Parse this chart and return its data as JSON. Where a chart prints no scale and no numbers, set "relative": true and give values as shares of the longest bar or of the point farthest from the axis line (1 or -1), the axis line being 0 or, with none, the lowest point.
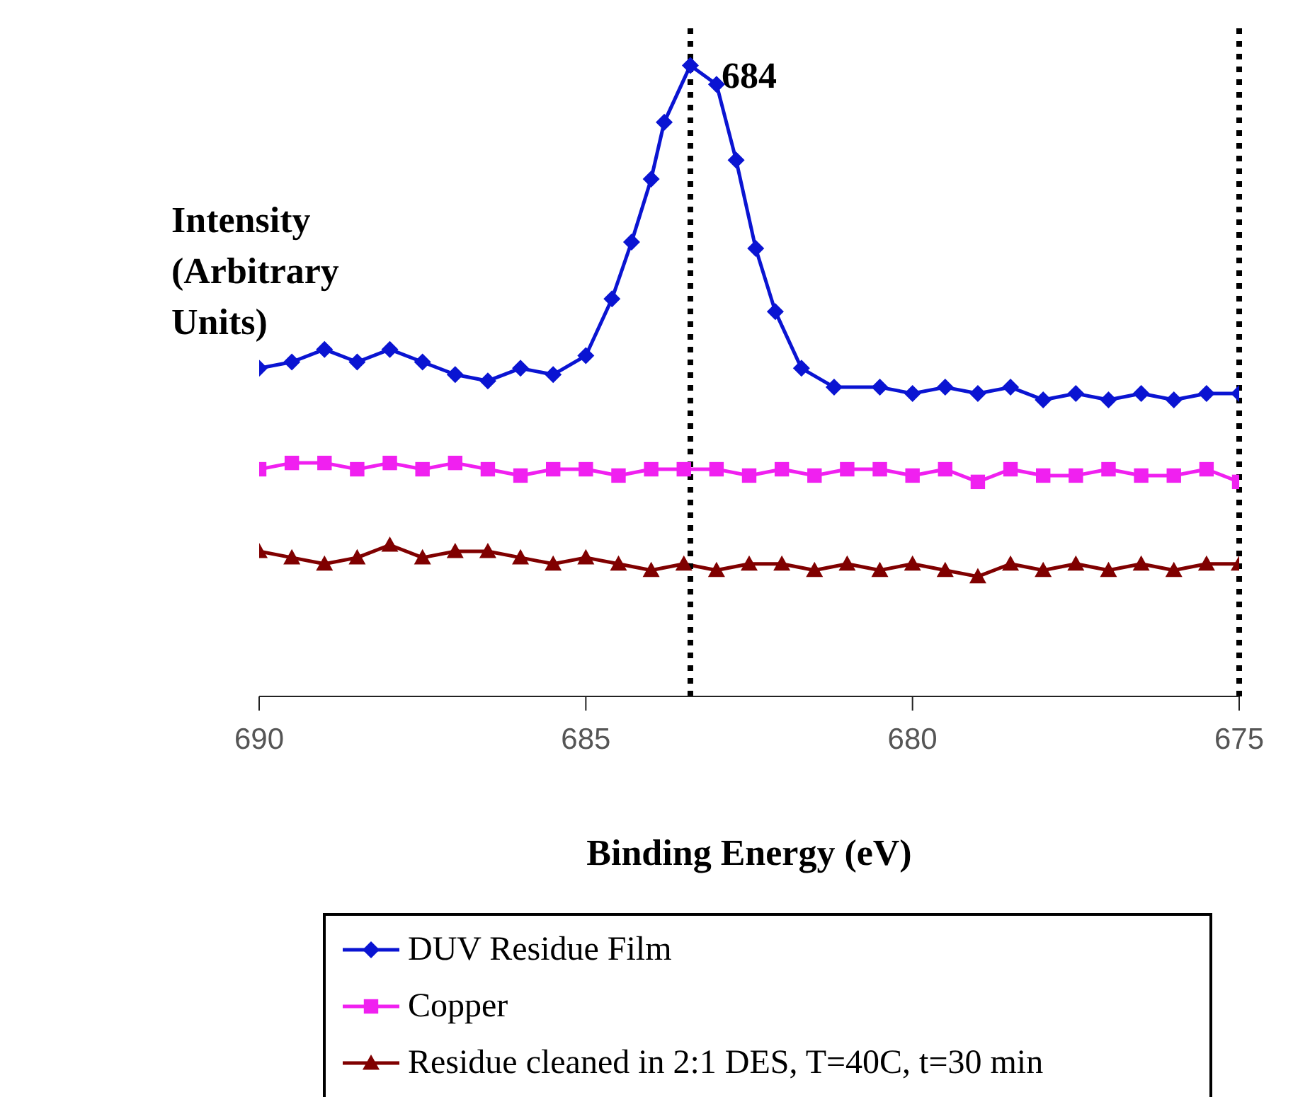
{
  "chart_data": {
    "type": "line",
    "relative": true,
    "xlabel": "Binding Energy (eV)",
    "ylabel": "Intensity (Arbitrary Units)",
    "xlim": [
      690,
      675
    ],
    "xticks": [
      690,
      685,
      680,
      675
    ],
    "grid": false,
    "legend": "bottom",
    "line_style": "solid",
    "series": [
      {
        "name": "DUV Residue Film",
        "color": "#0a14d2",
        "marker": "diamond",
        "x": [
          690,
          689.5,
          689,
          688.5,
          688,
          687.5,
          687,
          686.5,
          686,
          685.5,
          685,
          684.6,
          684.3,
          684,
          683.8,
          683.4,
          683,
          682.7,
          682.4,
          682.1,
          681.7,
          681.2,
          680.5,
          680,
          679.5,
          679,
          678.5,
          678,
          677.5,
          677,
          676.5,
          676,
          675.5,
          675
        ],
        "values": [
          0.52,
          0.53,
          0.55,
          0.53,
          0.55,
          0.53,
          0.51,
          0.5,
          0.52,
          0.51,
          0.54,
          0.63,
          0.72,
          0.82,
          0.91,
          1.0,
          0.97,
          0.85,
          0.71,
          0.61,
          0.52,
          0.49,
          0.49,
          0.48,
          0.49,
          0.48,
          0.49,
          0.47,
          0.48,
          0.47,
          0.48,
          0.47,
          0.48,
          0.48
        ]
      },
      {
        "name": "Copper",
        "color": "#f020f0",
        "marker": "square",
        "x": [
          690,
          689.5,
          689,
          688.5,
          688,
          687.5,
          687,
          686.5,
          686,
          685.5,
          685,
          684.5,
          684,
          683.5,
          683,
          682.5,
          682,
          681.5,
          681,
          680.5,
          680,
          679.5,
          679,
          678.5,
          678,
          677.5,
          677,
          676.5,
          676,
          675.5,
          675
        ],
        "values": [
          0.36,
          0.37,
          0.37,
          0.36,
          0.37,
          0.36,
          0.37,
          0.36,
          0.35,
          0.36,
          0.36,
          0.35,
          0.36,
          0.36,
          0.36,
          0.35,
          0.36,
          0.35,
          0.36,
          0.36,
          0.35,
          0.36,
          0.34,
          0.36,
          0.35,
          0.35,
          0.36,
          0.35,
          0.35,
          0.36,
          0.34
        ]
      },
      {
        "name": "Residue cleaned in 2:1 DES, T=40C, t=30 min",
        "color": "#800000",
        "marker": "triangle",
        "x": [
          690,
          689.5,
          689,
          688.5,
          688,
          687.5,
          687,
          686.5,
          686,
          685.5,
          685,
          684.5,
          684,
          683.5,
          683,
          682.5,
          682,
          681.5,
          681,
          680.5,
          680,
          679.5,
          679,
          678.5,
          678,
          677.5,
          677,
          676.5,
          676,
          675.5,
          675
        ],
        "values": [
          0.23,
          0.22,
          0.21,
          0.22,
          0.24,
          0.22,
          0.23,
          0.23,
          0.22,
          0.21,
          0.22,
          0.21,
          0.2,
          0.21,
          0.2,
          0.21,
          0.21,
          0.2,
          0.21,
          0.2,
          0.21,
          0.2,
          0.19,
          0.21,
          0.2,
          0.21,
          0.2,
          0.21,
          0.2,
          0.21,
          0.21
        ]
      }
    ],
    "annotations": [
      {
        "text": "684",
        "x": 683.4,
        "y": 1.0
      }
    ],
    "ref_lines": [
      {
        "axis": "x",
        "value": 683.4,
        "label": null,
        "color": "#000000",
        "line_style": "dotted"
      },
      {
        "axis": "x",
        "value": 675,
        "label": null,
        "color": "#000000",
        "line_style": "dotted"
      }
    ]
  }
}
